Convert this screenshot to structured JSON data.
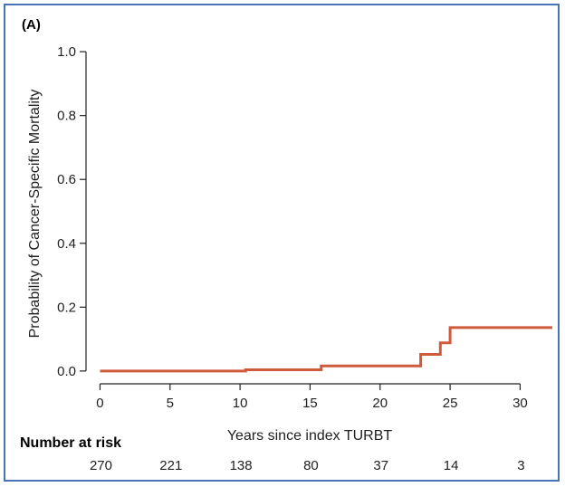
{
  "panel_label": "(A)",
  "chart_data": {
    "type": "line",
    "step": true,
    "title": "",
    "xlabel": "Years since index TURBT",
    "ylabel": "Probability of Cancer-Specific Mortality",
    "xlim": [
      -1,
      32.3
    ],
    "ylim": [
      -0.04,
      1.04
    ],
    "xticks": [
      0,
      5,
      10,
      15,
      20,
      25,
      30
    ],
    "yticks": [
      0.0,
      0.2,
      0.4,
      0.6,
      0.8,
      1.0
    ],
    "ytick_labels": [
      "0.0",
      "0.2",
      "0.4",
      "0.6",
      "0.8",
      "1.0"
    ],
    "grid": false,
    "series": [
      {
        "color": "#d05a3c",
        "x": [
          0,
          10.4,
          10.4,
          15.8,
          15.8,
          22.9,
          22.9,
          24.3,
          24.3,
          25.0,
          25.0,
          32.3
        ],
        "y": [
          0.0,
          0.0,
          0.004,
          0.004,
          0.016,
          0.016,
          0.052,
          0.052,
          0.088,
          0.088,
          0.136,
          0.136
        ]
      }
    ]
  },
  "risk_table": {
    "title": "Number at risk",
    "times": [
      0,
      5,
      10,
      15,
      20,
      25,
      30
    ],
    "counts": [
      "270",
      "221",
      "138",
      "80",
      "37",
      "14",
      "3"
    ]
  }
}
